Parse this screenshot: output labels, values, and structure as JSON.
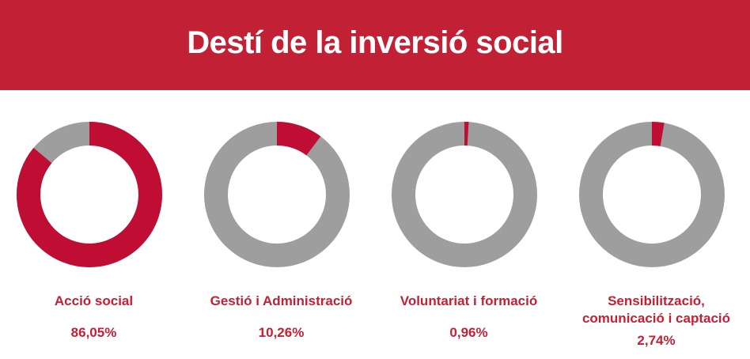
{
  "page": {
    "title": "Destí de la inversió social"
  },
  "colors": {
    "accent": "#c00d34",
    "remainder": "#9e9e9e",
    "header": "#c22034"
  },
  "chart_data": {
    "type": "pie",
    "title": "Destí de la inversió social",
    "items": [
      {
        "label": "Acció social",
        "value": 86.05,
        "value_label": "86,05%"
      },
      {
        "label": "Gestió i Administració",
        "value": 10.26,
        "value_label": "10,26%"
      },
      {
        "label": "Voluntariat i formació",
        "value": 0.96,
        "value_label": "0,96%"
      },
      {
        "label": "Sensibilització, comunicació i captació",
        "value": 2.74,
        "value_label": "2,74%"
      }
    ]
  }
}
